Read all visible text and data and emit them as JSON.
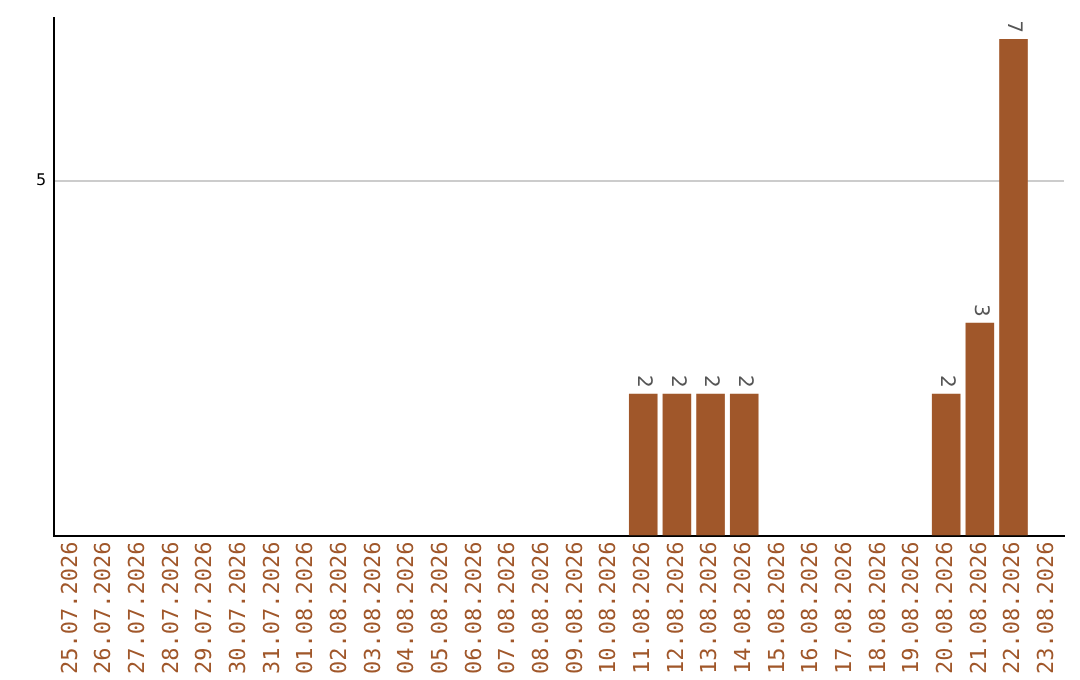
{
  "chart_data": {
    "type": "bar",
    "categories": [
      "25.07.2026",
      "26.07.2026",
      "27.07.2026",
      "28.07.2026",
      "29.07.2026",
      "30.07.2026",
      "31.07.2026",
      "01.08.2026",
      "02.08.2026",
      "03.08.2026",
      "04.08.2026",
      "05.08.2026",
      "06.08.2026",
      "07.08.2026",
      "08.08.2026",
      "09.08.2026",
      "10.08.2026",
      "11.08.2026",
      "12.08.2026",
      "13.08.2026",
      "14.08.2026",
      "15.08.2026",
      "16.08.2026",
      "17.08.2026",
      "18.08.2026",
      "19.08.2026",
      "20.08.2026",
      "21.08.2026",
      "22.08.2026",
      "23.08.2026"
    ],
    "values": [
      null,
      null,
      null,
      null,
      null,
      null,
      null,
      null,
      null,
      null,
      null,
      null,
      null,
      null,
      null,
      null,
      null,
      2,
      2,
      2,
      2,
      null,
      null,
      null,
      null,
      null,
      2,
      3,
      7,
      null
    ],
    "data_labels": true,
    "color": "#a0572a",
    "ylim": [
      0,
      7.3
    ],
    "yticks": [
      5
    ],
    "grid": "y",
    "legend": false
  }
}
